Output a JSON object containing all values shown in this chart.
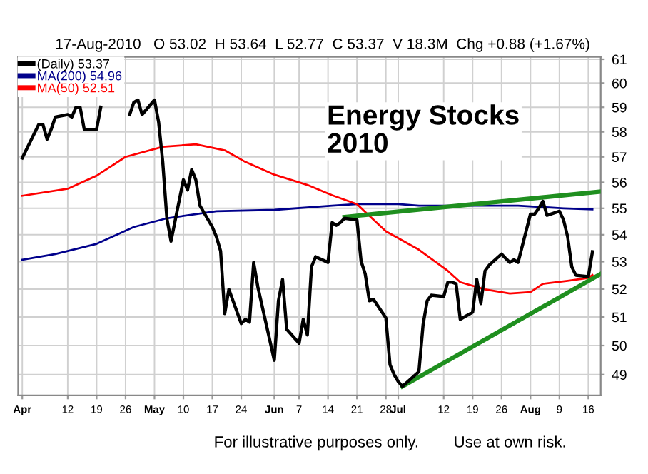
{
  "chart_data": {
    "type": "line",
    "subtitle": "17-Aug-2010   O 53.02  H 53.64  L 52.77  C 53.37  V 18.3M  Chg +0.88 (+1.67%)",
    "annotations": [
      "Energy Stocks\n2010",
      "For illustrative purposes only.",
      "Use at own risk."
    ],
    "log": "y",
    "grid": true,
    "legend": "top left",
    "xlim": [
      "2010-03-31",
      "2010-08-19"
    ],
    "xticks": [
      {
        "value": "2010-04-01",
        "label": "Apr"
      },
      {
        "value": "2010-04-12",
        "label": "12"
      },
      {
        "value": "2010-04-19",
        "label": "19"
      },
      {
        "value": "2010-04-26",
        "label": "26"
      },
      {
        "value": "2010-05-03",
        "label": "May"
      },
      {
        "value": "2010-05-10",
        "label": "10"
      },
      {
        "value": "2010-05-17",
        "label": "17"
      },
      {
        "value": "2010-05-24",
        "label": "24"
      },
      {
        "value": "2010-06-01",
        "label": "Jun"
      },
      {
        "value": "2010-06-07",
        "label": "7"
      },
      {
        "value": "2010-06-14",
        "label": "14"
      },
      {
        "value": "2010-06-21",
        "label": "21"
      },
      {
        "value": "2010-06-28",
        "label": "28"
      },
      {
        "value": "2010-07-01",
        "label": "Jul"
      },
      {
        "value": "2010-07-12",
        "label": "12"
      },
      {
        "value": "2010-07-19",
        "label": "19"
      },
      {
        "value": "2010-07-26",
        "label": "26"
      },
      {
        "value": "2010-08-02",
        "label": "Aug"
      },
      {
        "value": "2010-08-09",
        "label": "9"
      },
      {
        "value": "2010-08-16",
        "label": "16"
      }
    ],
    "ylim": [
      48.3,
      61.1
    ],
    "yticks": [
      49,
      50,
      51,
      52,
      53,
      54,
      55,
      56,
      57,
      58,
      59,
      60,
      61
    ],
    "series": [
      {
        "name": "(Daily) 53.37",
        "color": "#000000",
        "x": [
          "2010-04-01",
          "2010-04-05",
          "2010-04-06",
          "2010-04-07",
          "2010-04-08",
          "2010-04-09",
          "2010-04-12",
          "2010-04-13",
          "2010-04-14",
          "2010-04-15",
          "2010-04-16",
          "2010-04-19",
          "2010-04-20",
          "2010-04-21",
          "2010-04-27",
          "2010-04-28",
          "2010-04-29",
          "2010-04-30",
          "2010-05-03",
          "2010-05-04",
          "2010-05-05",
          "2010-05-06",
          "2010-05-07",
          "2010-05-10",
          "2010-05-11",
          "2010-05-12",
          "2010-05-13",
          "2010-05-14",
          "2010-05-17",
          "2010-05-18",
          "2010-05-19",
          "2010-05-20",
          "2010-05-21",
          "2010-05-24",
          "2010-05-25",
          "2010-05-26",
          "2010-05-27",
          "2010-05-28",
          "2010-06-01",
          "2010-06-02",
          "2010-06-03",
          "2010-06-04",
          "2010-06-07",
          "2010-06-08",
          "2010-06-09",
          "2010-06-10",
          "2010-06-11",
          "2010-06-14",
          "2010-06-15",
          "2010-06-16",
          "2010-06-17",
          "2010-06-18",
          "2010-06-21",
          "2010-06-22",
          "2010-06-23",
          "2010-06-24",
          "2010-06-25",
          "2010-06-28",
          "2010-06-29",
          "2010-06-30",
          "2010-07-01",
          "2010-07-02",
          "2010-07-06",
          "2010-07-07",
          "2010-07-08",
          "2010-07-09",
          "2010-07-12",
          "2010-07-13",
          "2010-07-14",
          "2010-07-15",
          "2010-07-16",
          "2010-07-19",
          "2010-07-20",
          "2010-07-21",
          "2010-07-22",
          "2010-07-23",
          "2010-07-26",
          "2010-07-27",
          "2010-07-28",
          "2010-07-29",
          "2010-07-30",
          "2010-08-02",
          "2010-08-03",
          "2010-08-04",
          "2010-08-05",
          "2010-08-06",
          "2010-08-09",
          "2010-08-10",
          "2010-08-11",
          "2010-08-12",
          "2010-08-13",
          "2010-08-16",
          "2010-08-17"
        ],
        "values": [
          56.96,
          58.3,
          58.3,
          57.7,
          58.1,
          58.6,
          58.7,
          58.6,
          59.0,
          59.0,
          58.1,
          58.1,
          59.0,
          null,
          58.7,
          59.2,
          59.3,
          58.7,
          59.3,
          58.4,
          56.8,
          54.62,
          53.76,
          56.1,
          55.7,
          56.5,
          56.1,
          55.1,
          54.29,
          53.92,
          53.39,
          51.12,
          51.99,
          50.77,
          50.92,
          50.82,
          52.97,
          52.09,
          49.49,
          51.58,
          52.35,
          50.57,
          50.08,
          50.92,
          50.37,
          52.81,
          53.18,
          52.97,
          54.46,
          54.35,
          54.46,
          54.62,
          54.56,
          53.02,
          52.55,
          51.58,
          51.63,
          50.97,
          49.34,
          49.0,
          48.76,
          48.6,
          49.1,
          50.72,
          51.58,
          51.78,
          51.73,
          52.25,
          52.25,
          52.19,
          50.92,
          51.17,
          52.35,
          51.48,
          52.66,
          52.87,
          53.28,
          53.12,
          52.97,
          53.07,
          52.97,
          54.78,
          54.78,
          55.0,
          55.27,
          54.73,
          54.89,
          54.56,
          53.92,
          52.81,
          52.5,
          52.45,
          53.37
        ]
      },
      {
        "name": "MA(200) 54.96",
        "color": "#00008b",
        "x": [
          "2010-04-01",
          "2010-04-09",
          "2010-04-19",
          "2010-04-28",
          "2010-05-06",
          "2010-05-18",
          "2010-06-01",
          "2010-06-15",
          "2010-06-21",
          "2010-07-01",
          "2010-07-06",
          "2010-07-30",
          "2010-08-10",
          "2010-08-17"
        ],
        "values": [
          53.07,
          53.28,
          53.66,
          54.29,
          54.62,
          54.89,
          54.94,
          55.1,
          55.16,
          55.16,
          55.1,
          55.1,
          55.0,
          54.96
        ]
      },
      {
        "name": "MA(50) 52.51",
        "color": "#ff0000",
        "x": [
          "2010-04-01",
          "2010-04-12",
          "2010-04-19",
          "2010-04-26",
          "2010-05-05",
          "2010-05-13",
          "2010-05-20",
          "2010-05-25",
          "2010-06-01",
          "2010-06-09",
          "2010-06-15",
          "2010-06-21",
          "2010-06-28",
          "2010-07-06",
          "2010-07-13",
          "2010-07-16",
          "2010-07-22",
          "2010-07-28",
          "2010-08-02",
          "2010-08-05",
          "2010-08-11",
          "2010-08-16",
          "2010-08-17"
        ],
        "values": [
          55.48,
          55.75,
          56.26,
          57.0,
          57.4,
          57.5,
          57.26,
          56.8,
          56.3,
          55.9,
          55.5,
          55.16,
          54.13,
          53.44,
          52.66,
          52.25,
          51.99,
          51.84,
          51.89,
          52.19,
          52.3,
          52.4,
          52.51
        ]
      },
      {
        "color": "#1f8f1f",
        "x": [
          "2010-06-18",
          "2010-08-19"
        ],
        "values": [
          54.67,
          55.64
        ]
      },
      {
        "color": "#1f8f1f",
        "x": [
          "2010-07-02",
          "2010-08-19"
        ],
        "values": [
          48.6,
          52.55
        ]
      }
    ]
  }
}
